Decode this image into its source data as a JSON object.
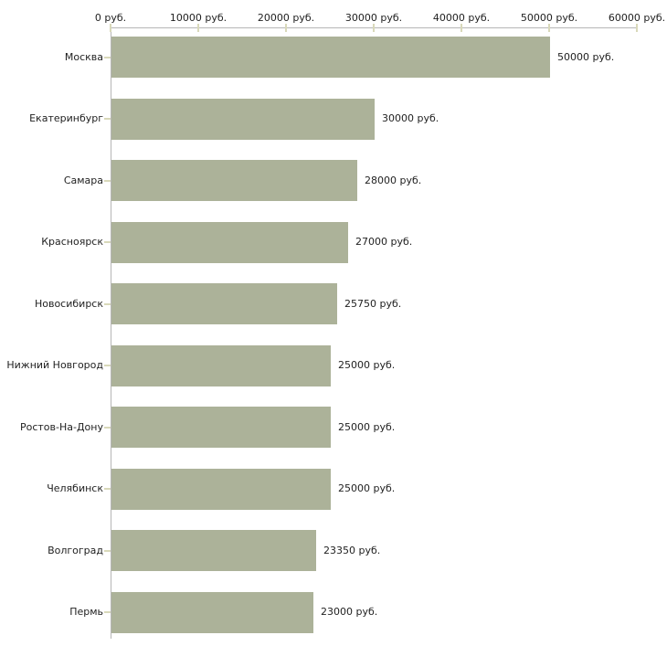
{
  "chart_data": {
    "type": "bar",
    "orientation": "horizontal",
    "title": "",
    "categories": [
      "Москва",
      "Екатеринбург",
      "Самара",
      "Красноярск",
      "Новосибирск",
      "Нижний Новгород",
      "Ростов-На-Дону",
      "Челябинск",
      "Волгоград",
      "Пермь"
    ],
    "values": [
      50000,
      30000,
      28000,
      27000,
      25750,
      25000,
      25000,
      25000,
      23350,
      23000
    ],
    "value_labels": [
      "50000 руб.",
      "30000 руб.",
      "28000 руб.",
      "27000 руб.",
      "25750 руб.",
      "25000 руб.",
      "25000 руб.",
      "25000 руб.",
      "23350 руб.",
      "23000 руб."
    ],
    "x_axis": {
      "position": "top",
      "min": 0,
      "max": 60000,
      "tick_interval": 10000,
      "ticks": [
        0,
        10000,
        20000,
        30000,
        40000,
        50000,
        60000
      ],
      "tick_labels": [
        "0 руб.",
        "10000 руб.",
        "20000 руб.",
        "30000 руб.",
        "40000 руб.",
        "50000 руб.",
        "60000 руб."
      ]
    },
    "unit": "руб.",
    "legend": false,
    "grid": false,
    "colors": {
      "bar": "#acb299",
      "axis_line": "#b6b6b6",
      "tick_mark": "#d9d9ba",
      "text": "#1f1f1f",
      "background": "#ffffff"
    }
  }
}
